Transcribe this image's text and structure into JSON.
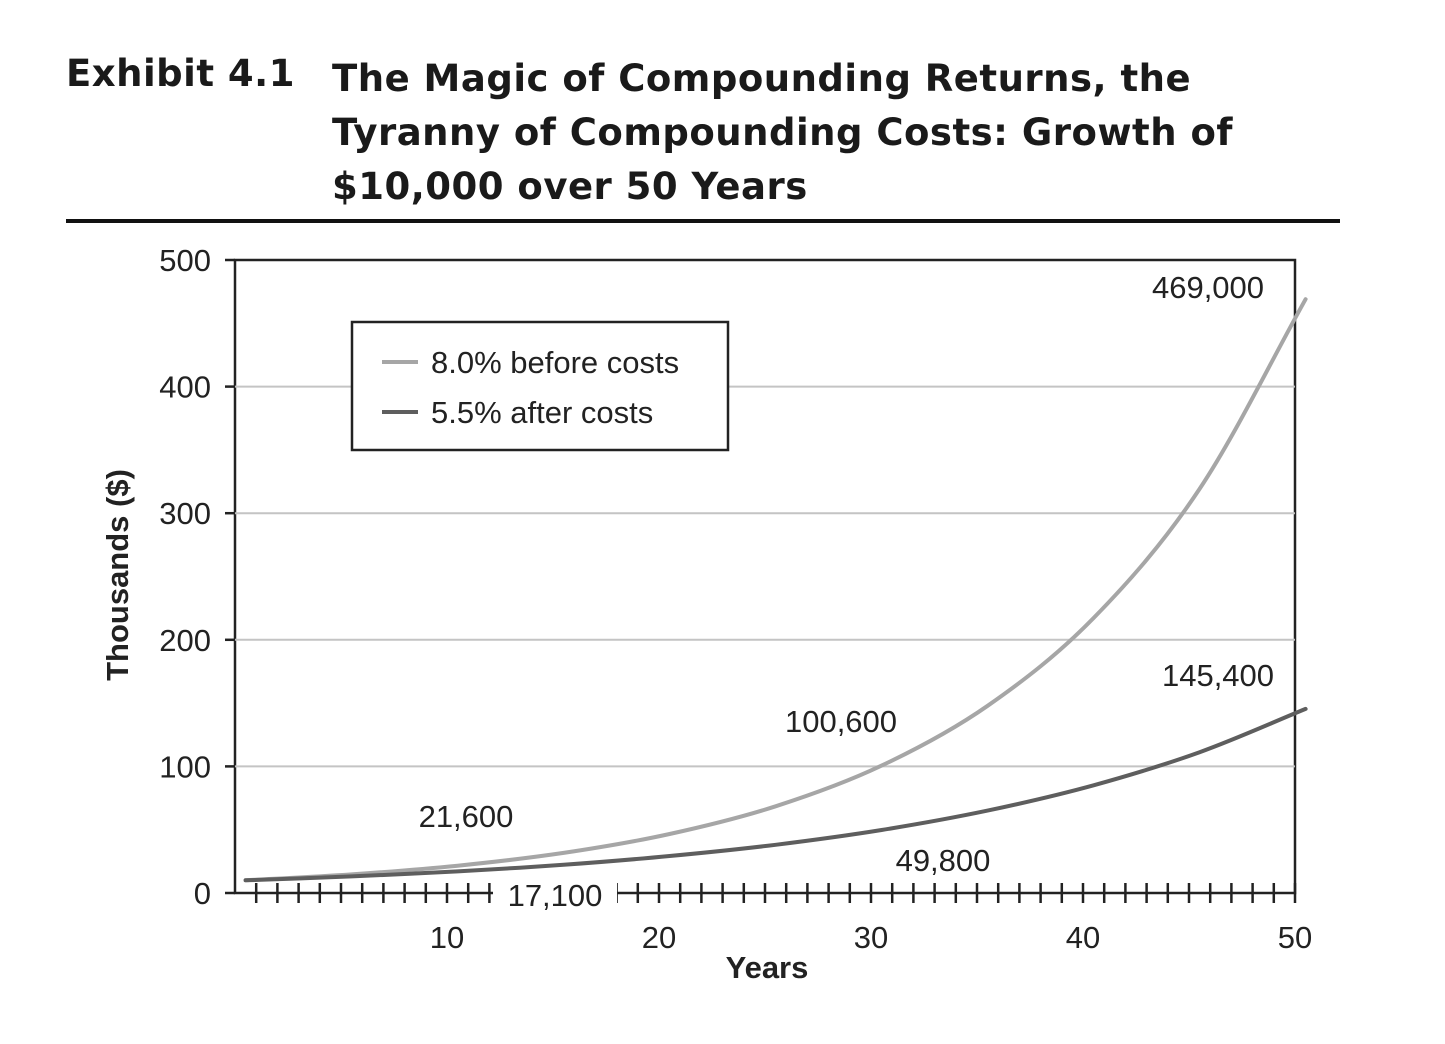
{
  "exhibit": {
    "number": "Exhibit 4.1",
    "title": "The Magic of Compounding Returns, the Tyranny of Compounding Costs: Growth of $10,000 over 50 Years"
  },
  "chart_data": {
    "type": "line",
    "xlabel": "Years",
    "ylabel": "Thousands ($)",
    "xlim": [
      0,
      50
    ],
    "ylim": [
      0,
      500
    ],
    "x_ticks": [
      10,
      20,
      30,
      40,
      50
    ],
    "y_ticks": [
      0,
      100,
      200,
      300,
      400,
      500
    ],
    "grid": "horizontal",
    "legend_position": "top-left",
    "series": [
      {
        "name": "8.0% before costs",
        "color": "#a6a6a6",
        "x": [
          0,
          5,
          10,
          15,
          20,
          25,
          30,
          35,
          40,
          45,
          50
        ],
        "y": [
          10,
          14.7,
          21.6,
          31.7,
          46.6,
          68.5,
          100.6,
          147.9,
          217.2,
          319.2,
          469
        ]
      },
      {
        "name": "5.5% after costs",
        "color": "#5e5e5e",
        "x": [
          0,
          5,
          10,
          15,
          20,
          25,
          30,
          35,
          40,
          45,
          50
        ],
        "y": [
          10,
          13.1,
          17.1,
          22.3,
          29.2,
          38.1,
          49.8,
          65.1,
          85.1,
          111.2,
          145.4
        ]
      }
    ],
    "annotations": [
      {
        "text": "469,000",
        "x": 50,
        "y": 469
      },
      {
        "text": "145,400",
        "x": 50,
        "y": 145.4
      },
      {
        "text": "100,600",
        "x": 30,
        "y": 100.6
      },
      {
        "text": "49,800",
        "x": 30,
        "y": 49.8
      },
      {
        "text": "21,600",
        "x": 10,
        "y": 21.6
      },
      {
        "text": "17,100",
        "x": 10,
        "y": 17.1
      }
    ]
  }
}
